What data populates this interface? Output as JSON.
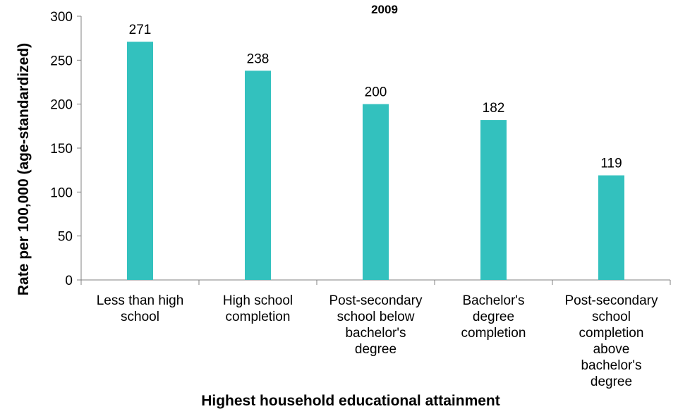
{
  "chart_data": {
    "type": "bar",
    "title": "2009",
    "xlabel": "Highest household educational attainment",
    "ylabel": "Rate per 100,000 (age-standardized)",
    "ylim": [
      0,
      300
    ],
    "yticks": [
      0,
      50,
      100,
      150,
      200,
      250,
      300
    ],
    "categories": [
      [
        "Less than high",
        "school"
      ],
      [
        "High school",
        "completion"
      ],
      [
        "Post-secondary",
        "school below",
        "bachelor's",
        "degree"
      ],
      [
        "Bachelor's",
        "degree",
        "completion"
      ],
      [
        "Post-secondary",
        "school",
        "completion",
        "above",
        "bachelor's",
        "degree"
      ]
    ],
    "values": [
      271,
      238,
      200,
      182,
      119
    ],
    "bar_color": "#33C1BE",
    "grid": false,
    "legend": "none"
  }
}
